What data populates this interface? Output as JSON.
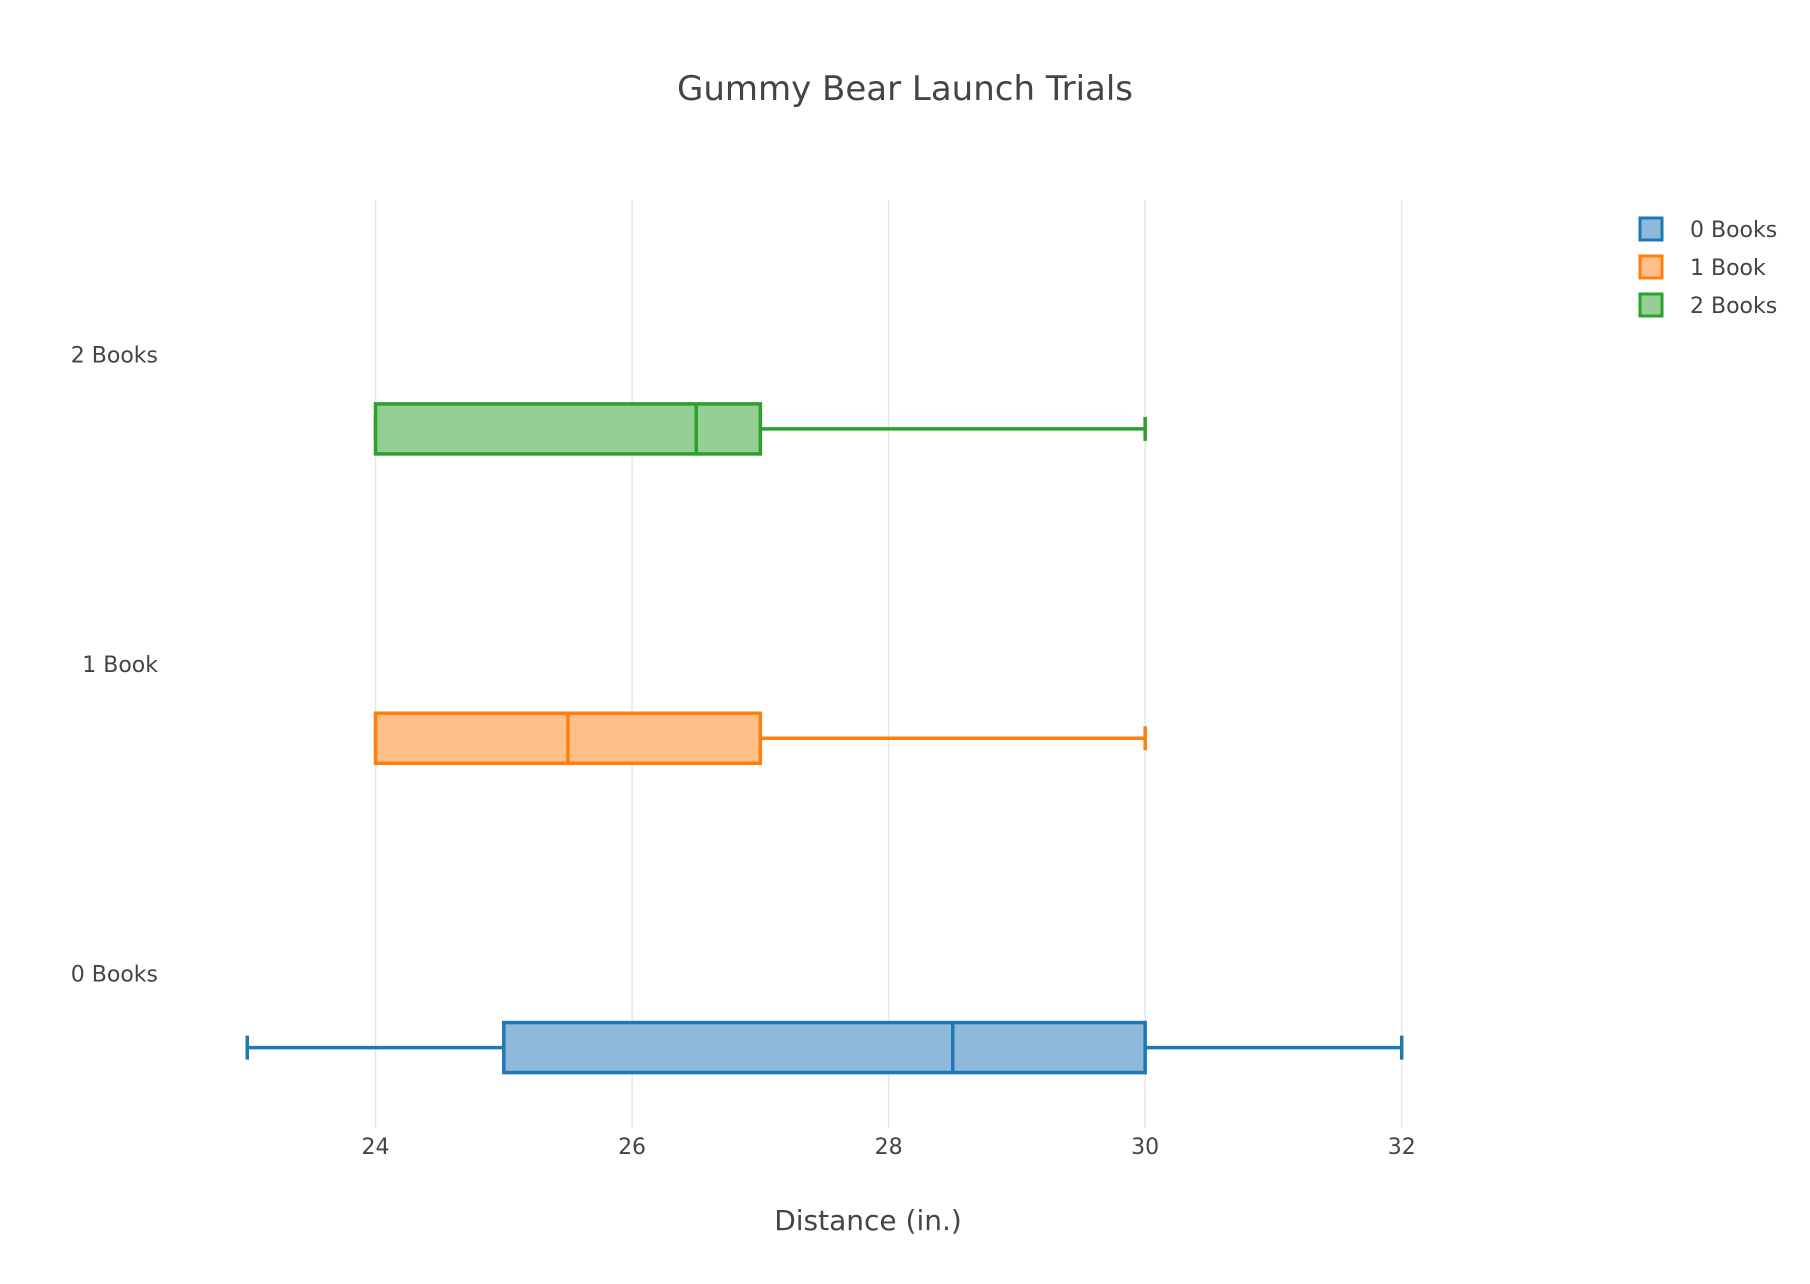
{
  "chart_data": {
    "type": "box",
    "orientation": "horizontal",
    "title": "Gummy Bear Launch Trials",
    "xlabel": "Distance (in.)",
    "ylabel": "",
    "xlim": [
      22.85,
      33.0
    ],
    "xticks": [
      24,
      26,
      28,
      30,
      32
    ],
    "grid": true,
    "legend_position": "top-right",
    "series": [
      {
        "name": "0 Books",
        "label": "0 Books",
        "color": "#1f77b4",
        "fill": "#8fb9da",
        "min": 23,
        "q1": 25,
        "median": 28.5,
        "q3": 30,
        "max": 32
      },
      {
        "name": "1 Book",
        "label": "1 Book",
        "color": "#ff7f0e",
        "fill": "#ffbf86",
        "min": 24,
        "q1": 24,
        "median": 25.5,
        "q3": 27,
        "max": 30
      },
      {
        "name": "2 Books",
        "label": "2 Books",
        "color": "#2ca02c",
        "fill": "#95cf95",
        "min": 24,
        "q1": 24,
        "median": 26.5,
        "q3": 27,
        "max": 30
      }
    ]
  }
}
